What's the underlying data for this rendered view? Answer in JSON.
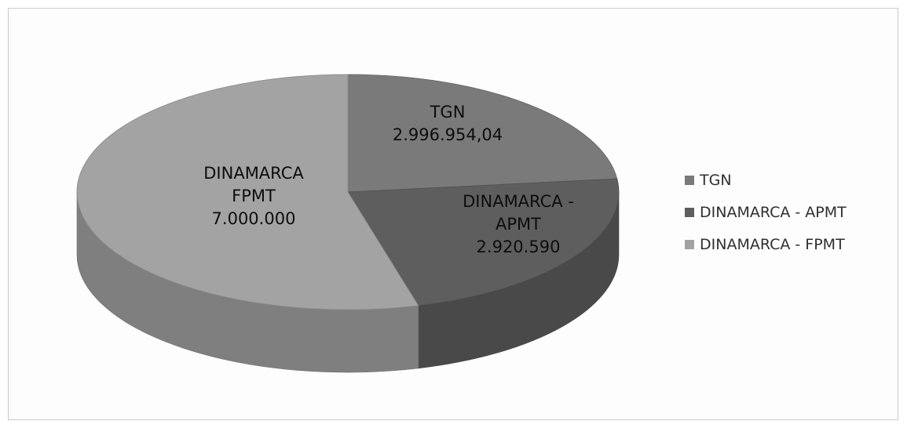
{
  "chart_data": {
    "type": "pie",
    "variant": "3d",
    "categories": [
      "TGN",
      "DINAMARCA - APMT",
      "DINAMARCA - FPMT"
    ],
    "values": [
      2996954.04,
      2920590,
      7000000
    ],
    "data_labels": [
      [
        "TGN",
        "2.996.954,04"
      ],
      [
        "DINAMARCA -",
        "APMT",
        "2.920.590"
      ],
      [
        "DINAMARCA",
        "FPMT",
        "7.000.000"
      ]
    ],
    "legend_position": "right",
    "colors": [
      "#7a7a7a",
      "#5e5e5e",
      "#a3a3a3"
    ]
  },
  "legend": {
    "items": [
      "TGN",
      "DINAMARCA - APMT",
      "DINAMARCA - FPMT"
    ]
  }
}
